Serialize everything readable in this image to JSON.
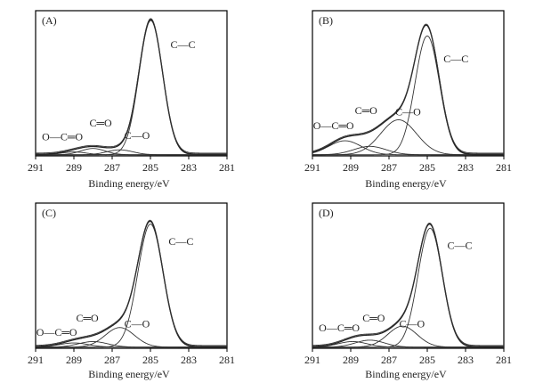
{
  "chart_data": [
    {
      "type": "line",
      "panel_label": "(A)",
      "xlabel": "Binding energy/eV",
      "xlim": [
        291,
        281
      ],
      "ylim": [
        0,
        100
      ],
      "ticks": [
        "291",
        "289",
        "287",
        "285",
        "283",
        "281"
      ],
      "tick_values": [
        291,
        289,
        287,
        285,
        283,
        281
      ],
      "series": [
        {
          "name": "C—C",
          "center": 284.98,
          "amplitude": 96,
          "fwhm": 1.45
        },
        {
          "name": "C—O",
          "center": 286.6,
          "amplitude": 3.5,
          "fwhm": 1.6
        },
        {
          "name": "C═O",
          "center": 288.0,
          "amplitude": 4.5,
          "fwhm": 1.5
        },
        {
          "name": "O—C═O",
          "center": 289.0,
          "amplitude": 2.0,
          "fwhm": 1.5
        }
      ],
      "annotations": [
        {
          "text": "C—C",
          "x": 283.3,
          "y": 77
        },
        {
          "text": "C═O",
          "x": 287.6,
          "y": 21
        },
        {
          "text": "C—O",
          "x": 285.7,
          "y": 12
        },
        {
          "text": "O—C═O",
          "x": 289.6,
          "y": 11
        }
      ]
    },
    {
      "type": "line",
      "panel_label": "(B)",
      "xlabel": "Binding energy/eV",
      "xlim": [
        291,
        281
      ],
      "ylim": [
        0,
        100
      ],
      "ticks": [
        "291",
        "289",
        "287",
        "285",
        "283",
        "281"
      ],
      "tick_values": [
        291,
        289,
        287,
        285,
        283,
        281
      ],
      "series": [
        {
          "name": "C—C",
          "center": 285.0,
          "amplitude": 85,
          "fwhm": 1.5
        },
        {
          "name": "C—O",
          "center": 286.5,
          "amplitude": 25,
          "fwhm": 2.2
        },
        {
          "name": "C═O",
          "center": 288.0,
          "amplitude": 6,
          "fwhm": 2.0
        },
        {
          "name": "O—C═O",
          "center": 289.3,
          "amplitude": 10,
          "fwhm": 2.0
        }
      ],
      "annotations": [
        {
          "text": "C—C",
          "x": 283.5,
          "y": 67
        },
        {
          "text": "C═O",
          "x": 288.2,
          "y": 30
        },
        {
          "text": "C—O",
          "x": 286.0,
          "y": 29
        },
        {
          "text": "O—C═O",
          "x": 289.9,
          "y": 19
        }
      ]
    },
    {
      "type": "line",
      "panel_label": "(C)",
      "xlabel": "Binding energy/eV",
      "xlim": [
        291,
        281
      ],
      "ylim": [
        0,
        100
      ],
      "ticks": [
        "291",
        "289",
        "287",
        "285",
        "283",
        "281"
      ],
      "tick_values": [
        291,
        289,
        287,
        285,
        283,
        281
      ],
      "series": [
        {
          "name": "C—C",
          "center": 285.0,
          "amplitude": 88,
          "fwhm": 1.55
        },
        {
          "name": "C—O",
          "center": 286.6,
          "amplitude": 14,
          "fwhm": 1.8
        },
        {
          "name": "C═O",
          "center": 288.0,
          "amplitude": 4,
          "fwhm": 1.8
        },
        {
          "name": "O—C═O",
          "center": 289.0,
          "amplitude": 3,
          "fwhm": 1.8
        }
      ],
      "annotations": [
        {
          "text": "C—C",
          "x": 283.4,
          "y": 74
        },
        {
          "text": "C═O",
          "x": 288.3,
          "y": 19
        },
        {
          "text": "C—O",
          "x": 285.7,
          "y": 15
        },
        {
          "text": "O—C═O",
          "x": 289.9,
          "y": 9
        }
      ]
    },
    {
      "type": "line",
      "panel_label": "(D)",
      "xlabel": "Binding energy/eV",
      "xlim": [
        291,
        281
      ],
      "ylim": [
        0,
        100
      ],
      "ticks": [
        "291",
        "289",
        "287",
        "285",
        "283",
        "281"
      ],
      "tick_values": [
        291,
        289,
        287,
        285,
        283,
        281
      ],
      "series": [
        {
          "name": "C—C",
          "center": 284.85,
          "amplitude": 85,
          "fwhm": 1.5
        },
        {
          "name": "C—O",
          "center": 286.3,
          "amplitude": 15,
          "fwhm": 1.8
        },
        {
          "name": "C═O",
          "center": 288.0,
          "amplitude": 5,
          "fwhm": 1.8
        },
        {
          "name": "O—C═O",
          "center": 288.9,
          "amplitude": 4,
          "fwhm": 1.8
        }
      ],
      "annotations": [
        {
          "text": "C—C",
          "x": 283.3,
          "y": 71
        },
        {
          "text": "C═O",
          "x": 287.8,
          "y": 19
        },
        {
          "text": "C—O",
          "x": 285.8,
          "y": 15
        },
        {
          "text": "O—C═O",
          "x": 289.6,
          "y": 12
        }
      ]
    }
  ]
}
